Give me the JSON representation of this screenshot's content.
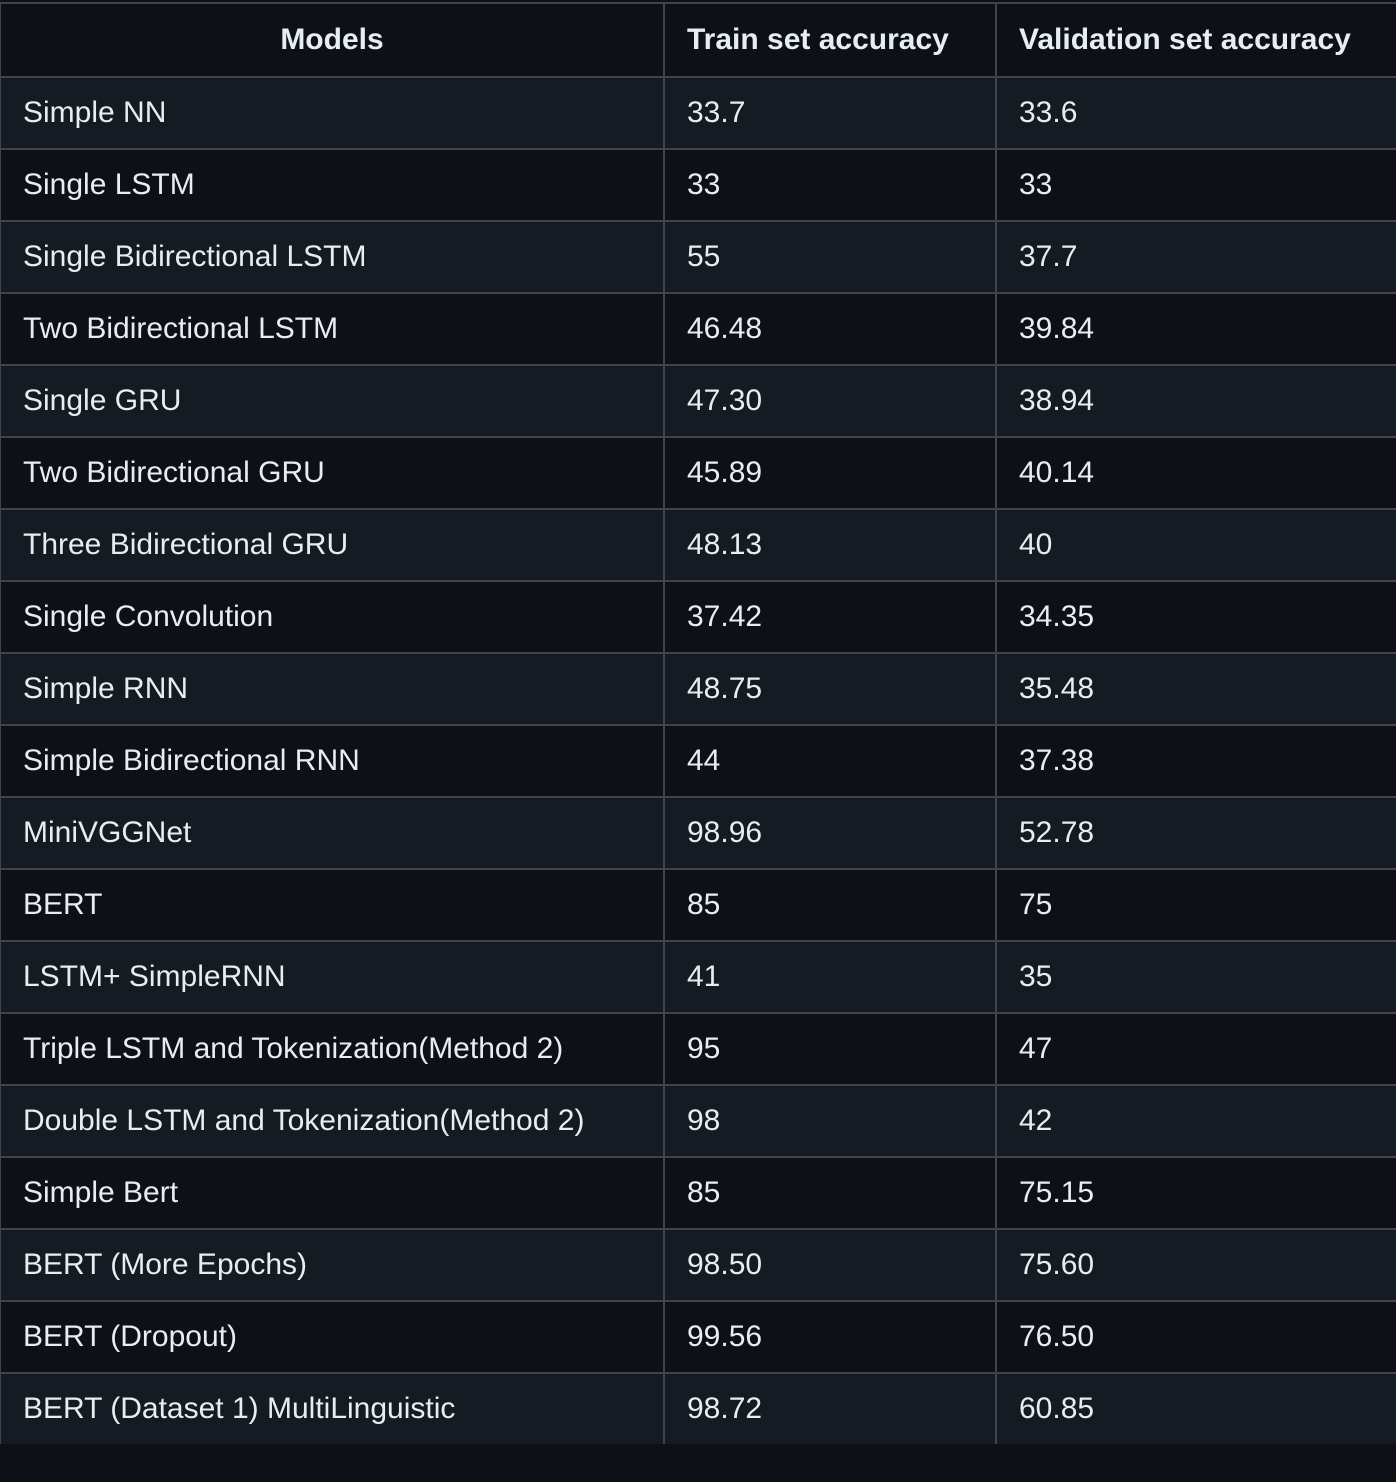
{
  "table": {
    "headers": [
      "Models",
      "Train set accuracy",
      "Validation set accuracy"
    ],
    "rows": [
      [
        "Simple NN",
        "33.7",
        "33.6"
      ],
      [
        "Single LSTM",
        "33",
        "33"
      ],
      [
        "Single Bidirectional LSTM",
        "55",
        "37.7"
      ],
      [
        "Two Bidirectional LSTM",
        "46.48",
        "39.84"
      ],
      [
        "Single GRU",
        "47.30",
        "38.94"
      ],
      [
        "Two Bidirectional GRU",
        "45.89",
        "40.14"
      ],
      [
        "Three Bidirectional GRU",
        "48.13",
        "40"
      ],
      [
        "Single Convolution",
        "37.42",
        "34.35"
      ],
      [
        "Simple RNN",
        "48.75",
        "35.48"
      ],
      [
        "Simple Bidirectional RNN",
        "44",
        "37.38"
      ],
      [
        "MiniVGGNet",
        "98.96",
        "52.78"
      ],
      [
        "BERT",
        "85",
        "75"
      ],
      [
        "LSTM+ SimpleRNN",
        "41",
        "35"
      ],
      [
        "Triple LSTM and Tokenization(Method 2)",
        "95",
        "47"
      ],
      [
        "Double LSTM and Tokenization(Method 2)",
        "98",
        "42"
      ],
      [
        "Simple Bert",
        "85",
        "75.15"
      ],
      [
        "BERT (More Epochs)",
        "98.50",
        "75.60"
      ],
      [
        "BERT (Dropout)",
        "99.56",
        "76.50"
      ],
      [
        "BERT (Dataset 1) MultiLinguistic",
        "98.72",
        "60.85"
      ]
    ]
  },
  "colors": {
    "background": "#0d1117",
    "row_alt": "#151b23",
    "border": "#3d444d",
    "text": "#e6edf3"
  }
}
